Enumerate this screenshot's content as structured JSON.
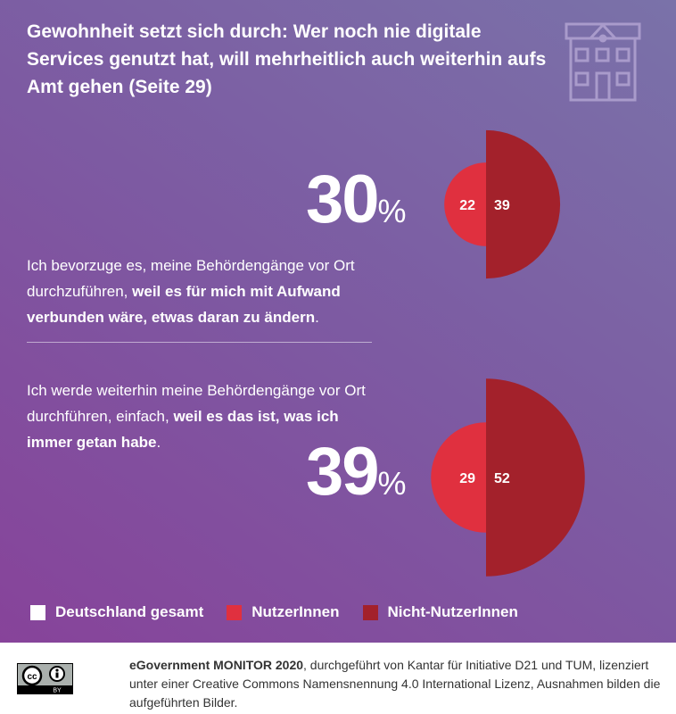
{
  "title": "Gewohnheit setzt sich durch: Wer noch nie digitale Services genutzt hat, will mehrheitlich auch weiterhin aufs Amt gehen (Seite 29)",
  "chart_data": {
    "type": "semicircle-pair",
    "legend": [
      {
        "name": "Deutschland gesamt",
        "color": "#ffffff"
      },
      {
        "name": "NutzerInnen",
        "color": "#e0303f"
      },
      {
        "name": "Nicht-NutzerInnen",
        "color": "#a3212b"
      }
    ],
    "items": [
      {
        "total": "30",
        "unit": "%",
        "text_plain": "Ich bevorzuge es, meine Behördengänge vor Ort durchzuführen, ",
        "text_bold": "weil es für mich mit Aufwand verbunden wäre, etwas daran zu ändern",
        "text_end": ".",
        "nutzer": 22,
        "nicht_nutzer": 39
      },
      {
        "total": "39",
        "unit": "%",
        "text_plain": "Ich werde weiterhin meine Behördengänge vor Ort durchführen, einfach, ",
        "text_bold": "weil es das ist, was ich immer getan habe",
        "text_end": ".",
        "nutzer": 29,
        "nicht_nutzer": 52
      }
    ]
  },
  "footer": {
    "bold": "eGovernment MONITOR 2020",
    "text": ", durchgeführt von Kantar für Initiative D21 und TUM, lizenziert unter einer Creative Commons Namensnennung 4.0 International Lizenz, Ausnahmen bilden die aufgeführten Bilder.",
    "license_badge": "BY"
  }
}
